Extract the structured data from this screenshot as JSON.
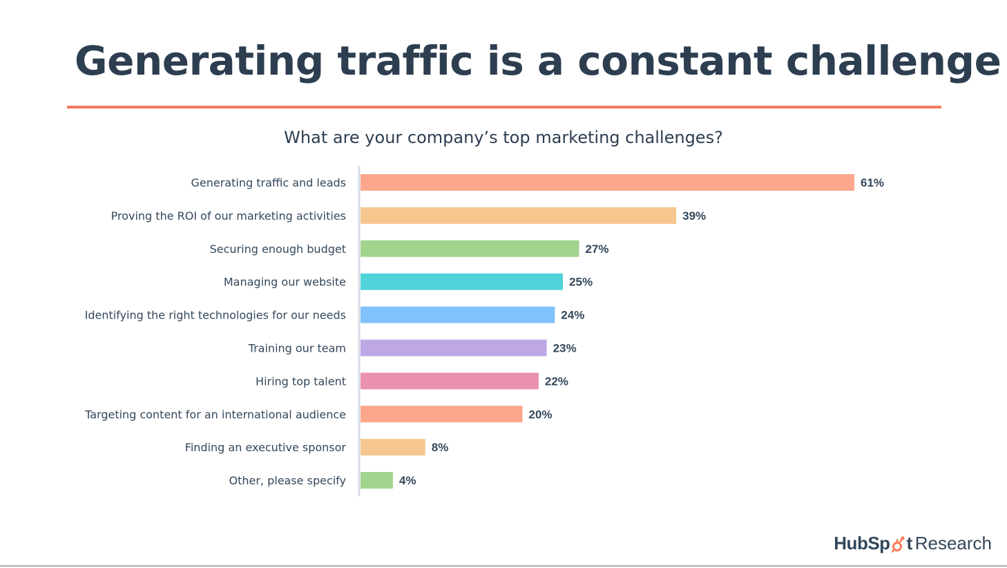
{
  "slide": {
    "title": "Generating traffic is a constant challenge"
  },
  "colors": {
    "title": "#2d3e50",
    "rule": "#f2785c",
    "axis": "#d6dde5",
    "brand_accent": "#ff7a59"
  },
  "brand": {
    "name_part1": "HubSp",
    "name_part2": "t",
    "suffix": "Research",
    "icon": "sprocket-icon"
  },
  "chart_data": {
    "type": "bar",
    "orientation": "horizontal",
    "title": "What are your company’s top marketing challenges?",
    "xlabel": "",
    "ylabel": "",
    "xlim": [
      0,
      100
    ],
    "grid": false,
    "legend": "none",
    "value_suffix": "%",
    "categories": [
      "Generating traffic and leads",
      "Proving the ROI of our marketing activities",
      "Securing enough budget",
      "Managing our website",
      "Identifying the right technologies for our needs",
      "Training our team",
      "Hiring top talent",
      "Targeting content for an international audience",
      "Finding an executive sponsor",
      "Other, please specify"
    ],
    "values": [
      61,
      39,
      27,
      25,
      24,
      23,
      22,
      20,
      8,
      4
    ],
    "value_labels": [
      "61%",
      "39%",
      "27%",
      "25%",
      "24%",
      "23%",
      "22%",
      "20%",
      "8%",
      "4%"
    ],
    "bar_colors": [
      "#fca68b",
      "#f5c78f",
      "#a3d48e",
      "#51d3da",
      "#81c1fd",
      "#bea7e5",
      "#ea90b1",
      "#fca68b",
      "#f5c78f",
      "#a3d48e"
    ]
  }
}
